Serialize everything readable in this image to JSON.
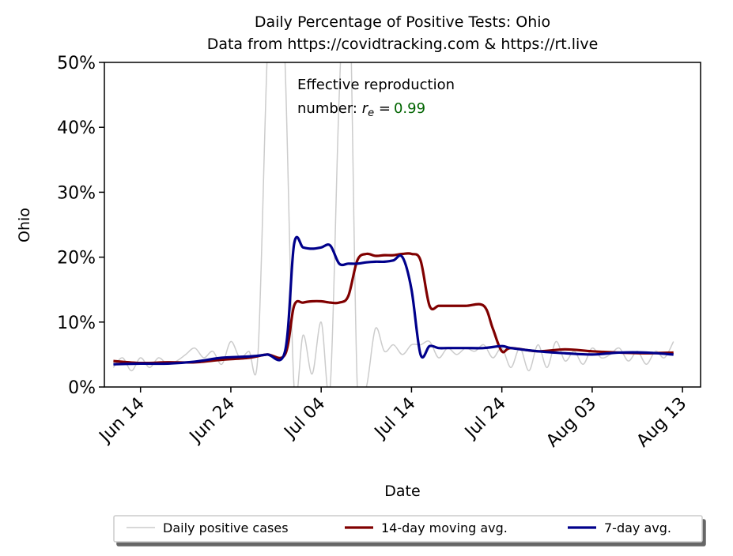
{
  "chart_data": {
    "type": "line",
    "title_line1": "Daily Percentage of Positive Tests: Ohio",
    "title_line2": "Data from https://covidtracking.com & https://rt.live",
    "xlabel": "Date",
    "ylabel": "Ohio",
    "ylim": [
      0,
      50
    ],
    "ytick_format": "percent",
    "yticks": [
      0,
      10,
      20,
      30,
      40,
      50
    ],
    "ytick_labels": [
      "0%",
      "10%",
      "20%",
      "30%",
      "40%",
      "50%"
    ],
    "xtick_labels": [
      "Jun 14",
      "Jun 24",
      "Jul 04",
      "Jul 14",
      "Jul 24",
      "Aug 03",
      "Aug 13"
    ],
    "xtick_dates": [
      "2020-06-14",
      "2020-06-24",
      "2020-07-04",
      "2020-07-14",
      "2020-07-24",
      "2020-08-03",
      "2020-08-13"
    ],
    "xlim": [
      "2020-06-10",
      "2020-08-15"
    ],
    "annotation": {
      "line1": "Effective reproduction",
      "line2_prefix": "number: ",
      "symbol": "r",
      "subscript": "e",
      "equals": " =",
      "value": "0.99",
      "value_color": "#006400"
    },
    "grid": false,
    "legend_position": "bottom-center",
    "series": [
      {
        "name": "Daily positive cases",
        "color": "#cccccc",
        "style": "thin",
        "x": [
          "2020-06-11",
          "2020-06-12",
          "2020-06-13",
          "2020-06-14",
          "2020-06-15",
          "2020-06-16",
          "2020-06-17",
          "2020-06-18",
          "2020-06-19",
          "2020-06-20",
          "2020-06-21",
          "2020-06-22",
          "2020-06-23",
          "2020-06-24",
          "2020-06-25",
          "2020-06-26",
          "2020-06-27",
          "2020-06-28",
          "2020-06-29",
          "2020-06-30",
          "2020-07-01",
          "2020-07-02",
          "2020-07-03",
          "2020-07-04",
          "2020-07-05",
          "2020-07-06",
          "2020-07-07",
          "2020-07-08",
          "2020-07-09",
          "2020-07-10",
          "2020-07-11",
          "2020-07-12",
          "2020-07-13",
          "2020-07-14",
          "2020-07-15",
          "2020-07-16",
          "2020-07-17",
          "2020-07-18",
          "2020-07-19",
          "2020-07-20",
          "2020-07-21",
          "2020-07-22",
          "2020-07-23",
          "2020-07-24",
          "2020-07-25",
          "2020-07-26",
          "2020-07-27",
          "2020-07-28",
          "2020-07-29",
          "2020-07-30",
          "2020-07-31",
          "2020-08-01",
          "2020-08-02",
          "2020-08-03",
          "2020-08-04",
          "2020-08-05",
          "2020-08-06",
          "2020-08-07",
          "2020-08-08",
          "2020-08-09",
          "2020-08-10",
          "2020-08-11",
          "2020-08-12"
        ],
        "values": [
          3.0,
          4.5,
          2.5,
          4.5,
          3.0,
          4.5,
          3.5,
          4.0,
          5.0,
          6.0,
          4.5,
          5.5,
          3.5,
          7.0,
          4.5,
          5.5,
          5.0,
          50.0,
          80.0,
          50.0,
          0.0,
          8.0,
          2.0,
          10.0,
          0.0,
          45.0,
          70.0,
          0.0,
          0.0,
          9.0,
          5.5,
          6.5,
          5.0,
          6.5,
          6.5,
          7.0,
          4.5,
          6.0,
          5.0,
          6.0,
          5.5,
          6.5,
          4.5,
          6.0,
          3.0,
          6.0,
          2.5,
          6.5,
          3.0,
          7.0,
          4.0,
          5.5,
          3.5,
          6.0,
          4.5,
          5.0,
          6.0,
          4.0,
          5.5,
          3.5,
          5.5,
          4.5,
          7.0
        ]
      },
      {
        "name": "14-day moving avg.",
        "color": "#800000",
        "style": "thick",
        "x": [
          "2020-06-11",
          "2020-06-14",
          "2020-06-17",
          "2020-06-20",
          "2020-06-23",
          "2020-06-26",
          "2020-06-28",
          "2020-06-30",
          "2020-07-01",
          "2020-07-02",
          "2020-07-03",
          "2020-07-04",
          "2020-07-05",
          "2020-07-06",
          "2020-07-07",
          "2020-07-08",
          "2020-07-09",
          "2020-07-10",
          "2020-07-11",
          "2020-07-12",
          "2020-07-13",
          "2020-07-14",
          "2020-07-15",
          "2020-07-16",
          "2020-07-17",
          "2020-07-18",
          "2020-07-20",
          "2020-07-22",
          "2020-07-23",
          "2020-07-24",
          "2020-07-25",
          "2020-07-28",
          "2020-07-31",
          "2020-08-03",
          "2020-08-06",
          "2020-08-09",
          "2020-08-12"
        ],
        "values": [
          4.0,
          3.7,
          3.8,
          3.8,
          4.2,
          4.5,
          5.0,
          5.0,
          12.5,
          13.0,
          13.2,
          13.2,
          13.0,
          13.0,
          14.0,
          19.5,
          20.5,
          20.2,
          20.3,
          20.3,
          20.5,
          20.5,
          19.5,
          12.5,
          12.5,
          12.5,
          12.5,
          12.5,
          9.0,
          5.5,
          6.0,
          5.5,
          5.8,
          5.5,
          5.3,
          5.2,
          5.3
        ]
      },
      {
        "name": "7-day avg.",
        "color": "#00008b",
        "style": "thick",
        "x": [
          "2020-06-11",
          "2020-06-14",
          "2020-06-17",
          "2020-06-20",
          "2020-06-23",
          "2020-06-26",
          "2020-06-28",
          "2020-06-30",
          "2020-07-01",
          "2020-07-02",
          "2020-07-03",
          "2020-07-04",
          "2020-07-05",
          "2020-07-06",
          "2020-07-07",
          "2020-07-08",
          "2020-07-09",
          "2020-07-10",
          "2020-07-11",
          "2020-07-12",
          "2020-07-13",
          "2020-07-14",
          "2020-07-15",
          "2020-07-16",
          "2020-07-17",
          "2020-07-18",
          "2020-07-20",
          "2020-07-22",
          "2020-07-24",
          "2020-07-25",
          "2020-07-28",
          "2020-07-31",
          "2020-08-03",
          "2020-08-06",
          "2020-08-09",
          "2020-08-12"
        ],
        "values": [
          3.5,
          3.6,
          3.6,
          3.9,
          4.5,
          4.7,
          5.0,
          5.5,
          22.0,
          21.5,
          21.3,
          21.5,
          21.8,
          19.0,
          19.0,
          19.0,
          19.2,
          19.3,
          19.3,
          19.5,
          20.0,
          15.0,
          5.0,
          6.3,
          6.0,
          6.0,
          6.0,
          6.0,
          6.3,
          6.0,
          5.5,
          5.2,
          5.0,
          5.3,
          5.3,
          5.0
        ]
      }
    ]
  }
}
